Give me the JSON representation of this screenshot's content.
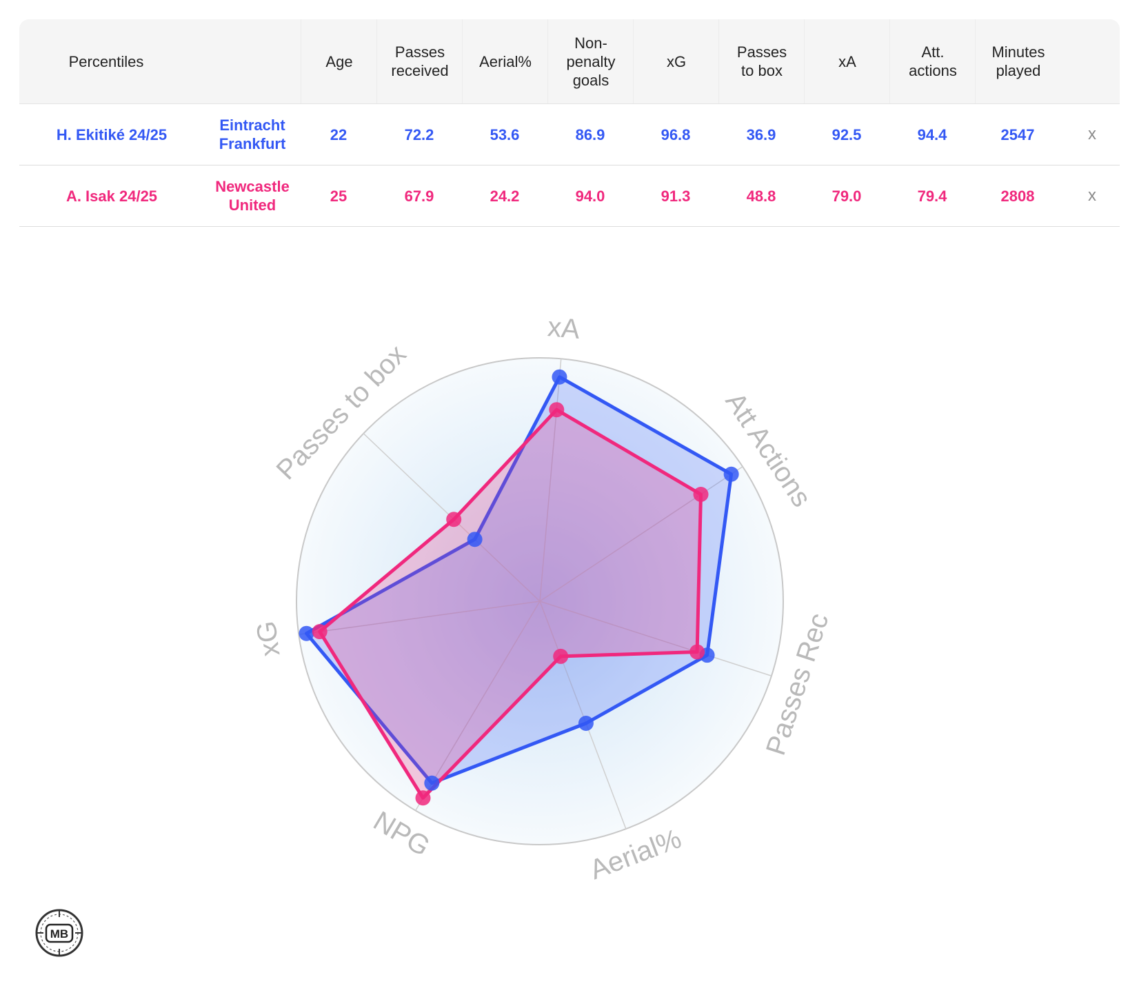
{
  "table": {
    "header": {
      "percentiles": "Percentiles",
      "age": "Age",
      "passes_received": "Passes\nreceived",
      "aerial": "Aerial%",
      "npg": "Non-\npenalty\ngoals",
      "xg": "xG",
      "passes_to_box": "Passes\nto box",
      "xa": "xA",
      "att_actions": "Att.\nactions",
      "minutes": "Minutes\nplayed"
    },
    "rows": [
      {
        "player": "H. Ekitiké 24/25",
        "team": "Eintracht\nFrankfurt",
        "age": "22",
        "passes_received": "72.2",
        "aerial": "53.6",
        "npg": "86.9",
        "xg": "96.8",
        "passes_to_box": "36.9",
        "xa": "92.5",
        "att_actions": "94.4",
        "minutes": "2547",
        "remove": "x",
        "color": "#3358f4"
      },
      {
        "player": "A. Isak 24/25",
        "team": "Newcastle\nUnited",
        "age": "25",
        "passes_received": "67.9",
        "aerial": "24.2",
        "npg": "94.0",
        "xg": "91.3",
        "passes_to_box": "48.8",
        "xa": "79.0",
        "att_actions": "79.4",
        "minutes": "2808",
        "remove": "x",
        "color": "#f0287d"
      }
    ]
  },
  "chart_data": {
    "type": "radar",
    "axes": [
      "xA",
      "Att Actions",
      "Passes Rec",
      "Aerial%",
      "NPG",
      "xG",
      "Passes to box"
    ],
    "range": [
      0,
      100
    ],
    "series": [
      {
        "name": "H. Ekitiké 24/25",
        "color": "#3358f4",
        "values": [
          92.5,
          94.4,
          72.2,
          53.6,
          86.9,
          96.8,
          36.9
        ]
      },
      {
        "name": "A. Isak 24/25",
        "color": "#f0287d",
        "values": [
          79.0,
          79.4,
          67.9,
          24.2,
          94.0,
          91.3,
          48.8
        ]
      }
    ]
  },
  "logo": {
    "text": "MB"
  }
}
